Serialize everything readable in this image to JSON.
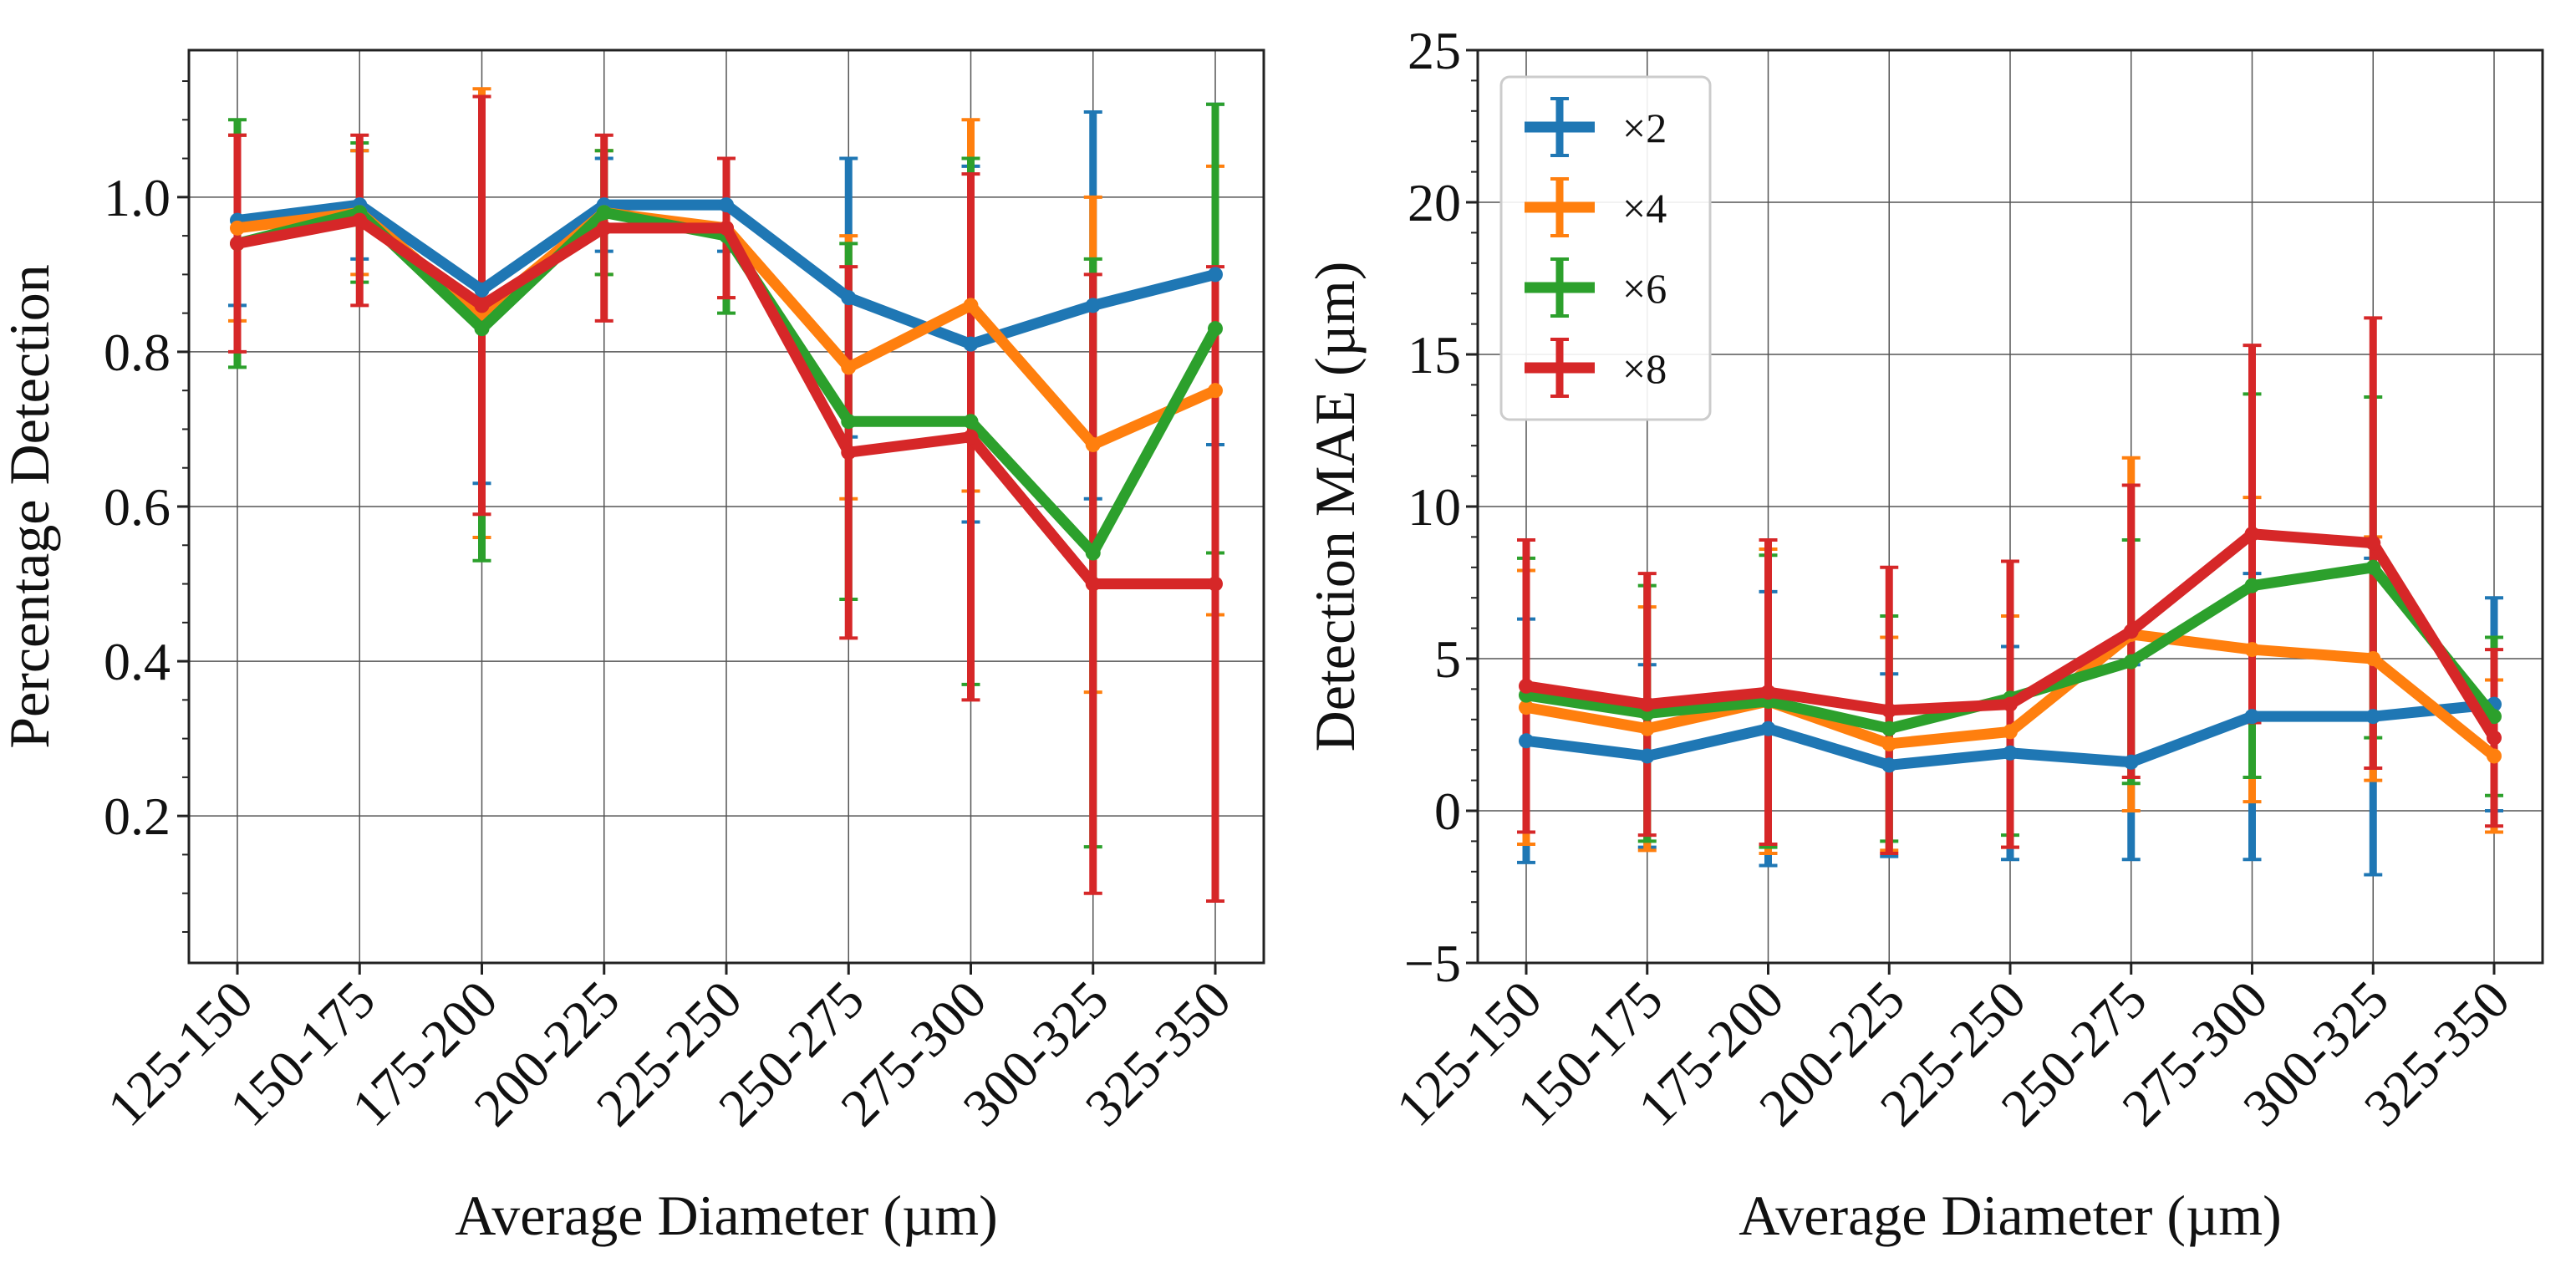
{
  "colors": {
    "x2": "#1f77b4",
    "x4": "#ff7f0e",
    "x6": "#2ca02c",
    "x8": "#d62728",
    "grid": "#555555",
    "axis": "#222222"
  },
  "chart_data": [
    {
      "type": "line",
      "xlabel": "Average Diameter (µm)",
      "ylabel": "Percentage Detection",
      "categories": [
        "125-150",
        "150-175",
        "175-200",
        "200-225",
        "225-250",
        "250-275",
        "275-300",
        "300-325",
        "325-350"
      ],
      "ylim": [
        0.01,
        1.19
      ],
      "yticks": [
        0.2,
        0.4,
        0.6,
        0.8,
        1.0
      ],
      "ytick_labels": [
        "0.2",
        "0.4",
        "0.6",
        "0.8",
        "1.0"
      ],
      "grid": true,
      "series": [
        {
          "name": "×2",
          "color_key": "x2",
          "values": [
            0.97,
            0.99,
            0.88,
            0.99,
            0.99,
            0.87,
            0.81,
            0.86,
            0.9
          ],
          "err": [
            0.11,
            0.07,
            0.25,
            0.06,
            0.06,
            0.18,
            0.23,
            0.25,
            0.22
          ]
        },
        {
          "name": "×4",
          "color_key": "x4",
          "values": [
            0.96,
            0.98,
            0.85,
            0.98,
            0.96,
            0.78,
            0.86,
            0.68,
            0.75
          ],
          "err": [
            0.12,
            0.08,
            0.29,
            0.08,
            0.09,
            0.17,
            0.24,
            0.32,
            0.29
          ]
        },
        {
          "name": "×6",
          "color_key": "x6",
          "values": [
            0.94,
            0.98,
            0.83,
            0.98,
            0.95,
            0.71,
            0.71,
            0.54,
            0.83
          ],
          "err": [
            0.16,
            0.09,
            0.3,
            0.08,
            0.1,
            0.23,
            0.34,
            0.38,
            0.29
          ]
        },
        {
          "name": "×8",
          "color_key": "x8",
          "values": [
            0.94,
            0.97,
            0.86,
            0.96,
            0.96,
            0.67,
            0.69,
            0.5,
            0.5
          ],
          "err": [
            0.14,
            0.11,
            0.27,
            0.12,
            0.09,
            0.24,
            0.34,
            0.4,
            0.41
          ]
        }
      ]
    },
    {
      "type": "line",
      "xlabel": "Average Diameter (µm)",
      "ylabel": "Detection MAE (µm)",
      "categories": [
        "125-150",
        "150-175",
        "175-200",
        "200-225",
        "225-250",
        "250-275",
        "275-300",
        "300-325",
        "325-350"
      ],
      "ylim": [
        -5,
        25
      ],
      "yticks": [
        -5,
        0,
        5,
        10,
        15,
        20,
        25
      ],
      "ytick_labels": [
        "−5",
        "0",
        "5",
        "10",
        "15",
        "20",
        "25"
      ],
      "grid": true,
      "legend": {
        "position": "top-left",
        "entries": [
          "×2",
          "×4",
          "×6",
          "×8"
        ]
      },
      "series": [
        {
          "name": "×2",
          "color_key": "x2",
          "values": [
            2.3,
            1.8,
            2.7,
            1.5,
            1.9,
            1.6,
            3.1,
            3.1,
            3.5
          ],
          "err": [
            4.0,
            3.0,
            4.5,
            3.0,
            3.5,
            3.2,
            4.7,
            5.2,
            3.5
          ]
        },
        {
          "name": "×4",
          "color_key": "x4",
          "values": [
            3.4,
            2.7,
            3.6,
            2.2,
            2.6,
            5.8,
            5.3,
            5.0,
            1.8
          ],
          "err": [
            4.5,
            4.0,
            5.0,
            3.5,
            3.8,
            5.8,
            5.0,
            4.0,
            2.5
          ]
        },
        {
          "name": "×6",
          "color_key": "x6",
          "values": [
            3.8,
            3.2,
            3.6,
            2.7,
            3.7,
            4.9,
            7.4,
            8.0,
            3.1
          ],
          "err": [
            4.5,
            4.2,
            4.8,
            3.7,
            4.5,
            4.0,
            6.3,
            5.6,
            2.6
          ]
        },
        {
          "name": "×8",
          "color_key": "x8",
          "values": [
            4.1,
            3.5,
            3.9,
            3.3,
            3.5,
            5.9,
            9.1,
            8.8,
            2.4
          ],
          "err": [
            4.8,
            4.3,
            5.0,
            4.7,
            4.7,
            4.8,
            6.2,
            7.4,
            2.9
          ]
        }
      ]
    }
  ]
}
